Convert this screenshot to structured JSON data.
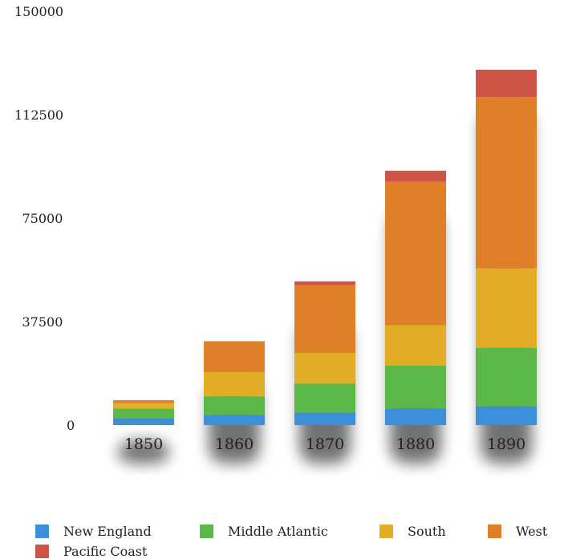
{
  "chart_data": {
    "type": "bar",
    "stacked": true,
    "categories": [
      "1850",
      "1860",
      "1870",
      "1880",
      "1890"
    ],
    "series": [
      {
        "name": "New England",
        "color": "#3c8fd9",
        "values": [
          2500,
          3700,
          4500,
          6000,
          6800
        ]
      },
      {
        "name": "Middle Atlantic",
        "color": "#5bb846",
        "values": [
          3500,
          6700,
          10500,
          15500,
          21200
        ]
      },
      {
        "name": "South",
        "color": "#e2ae26",
        "values": [
          2000,
          8800,
          11200,
          14700,
          28800
        ]
      },
      {
        "name": "West",
        "color": "#e07f29",
        "values": [
          1000,
          11200,
          24500,
          52000,
          62000
        ]
      },
      {
        "name": "Pacific Coast",
        "color": "#cf5546",
        "values": [
          0,
          0,
          1400,
          4000,
          10000
        ]
      }
    ],
    "y_ticks": [
      "0",
      "37500",
      "75000",
      "112500",
      "150000"
    ],
    "ylim": [
      0,
      150000
    ],
    "grid": false,
    "legend_position": "bottom"
  }
}
